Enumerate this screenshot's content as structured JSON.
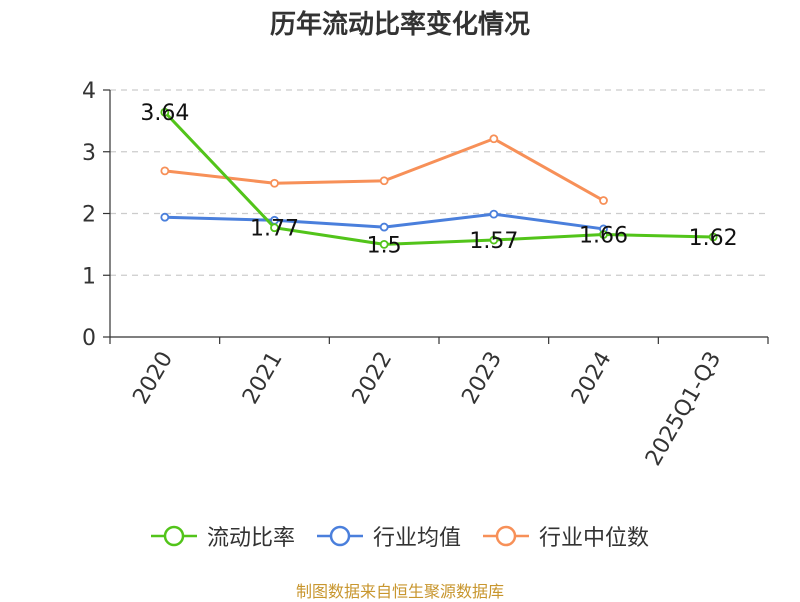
{
  "chart_data": {
    "type": "line",
    "title": "历年流动比率变化情况",
    "categories": [
      "2020",
      "2021",
      "2022",
      "2023",
      "2024",
      "2025Q1-Q3"
    ],
    "ylim": [
      0,
      4
    ],
    "yticks": [
      "0",
      "1",
      "2",
      "3",
      "4"
    ],
    "grid": true,
    "legend_position": "bottom",
    "series": [
      {
        "name": "流动比率",
        "color": "#52c41a",
        "values": [
          3.64,
          1.77,
          1.5,
          1.57,
          1.66,
          1.62
        ],
        "labels": [
          "3.64",
          "1.77",
          "1.5",
          "1.57",
          "1.66",
          "1.62"
        ]
      },
      {
        "name": "行业均值",
        "color": "#4a7fdc",
        "values": [
          1.94,
          1.89,
          1.78,
          1.99,
          1.75,
          null
        ]
      },
      {
        "name": "行业中位数",
        "color": "#f79058",
        "values": [
          2.69,
          2.49,
          2.53,
          3.21,
          2.21,
          null
        ]
      }
    ]
  },
  "source": "制图数据来自恒生聚源数据库"
}
